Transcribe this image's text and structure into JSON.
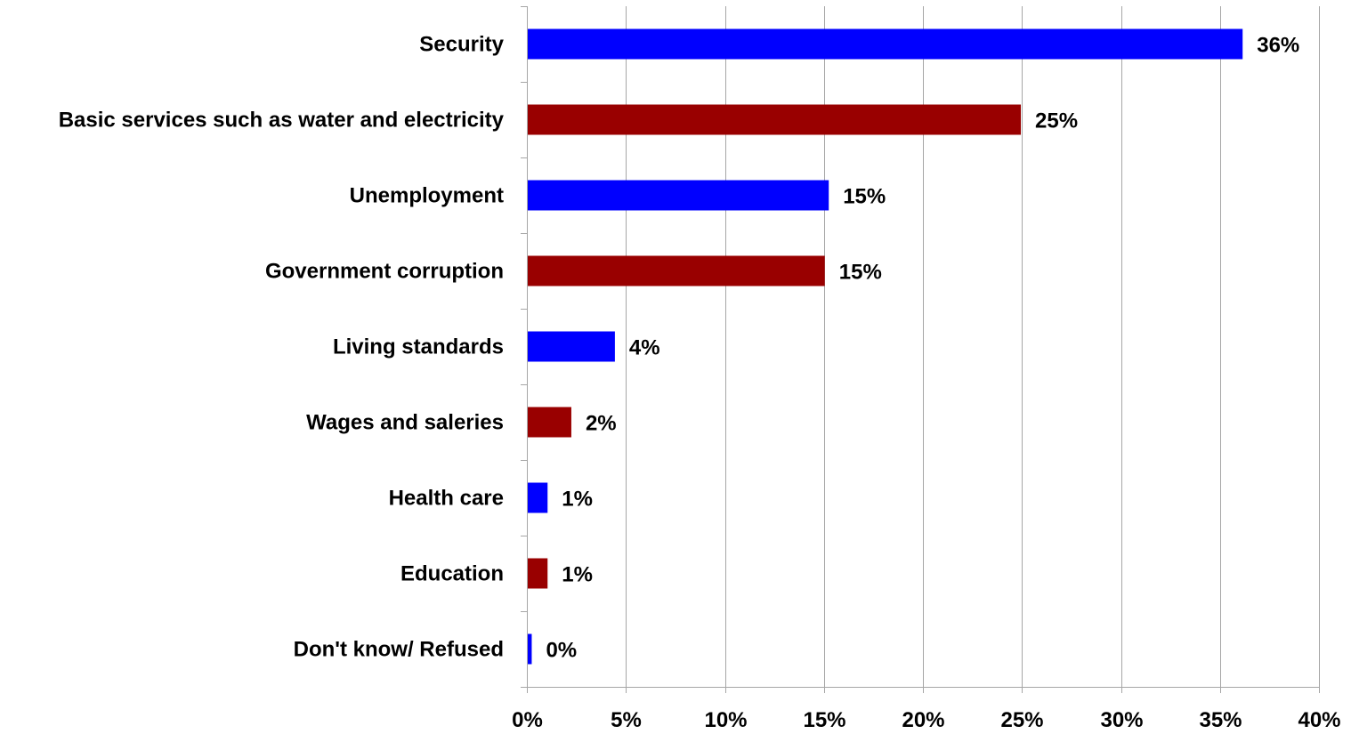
{
  "chart_data": {
    "type": "bar",
    "orientation": "horizontal",
    "categories": [
      "Security",
      "Basic services such as water and electricity",
      "Unemployment",
      "Government corruption",
      "Living standards",
      "Wages and saleries",
      "Health care",
      "Education",
      "Don't know/ Refused"
    ],
    "values": [
      36.1,
      24.9,
      15.2,
      15.0,
      4.4,
      2.2,
      1.0,
      1.0,
      0.2
    ],
    "value_labels": [
      "36%",
      "25%",
      "15%",
      "15%",
      "4%",
      "2%",
      "1%",
      "1%",
      "0%"
    ],
    "bar_colors": [
      "#0000ff",
      "#990000",
      "#0000ff",
      "#990000",
      "#0000ff",
      "#990000",
      "#0000ff",
      "#990000",
      "#0000ff"
    ],
    "xlim": [
      0,
      40
    ],
    "x_ticks": [
      0,
      5,
      10,
      15,
      20,
      25,
      30,
      35,
      40
    ],
    "x_tick_labels": [
      "0%",
      "5%",
      "10%",
      "15%",
      "20%",
      "25%",
      "30%",
      "35%",
      "40%"
    ],
    "grid": "vertical",
    "legend": "none"
  }
}
